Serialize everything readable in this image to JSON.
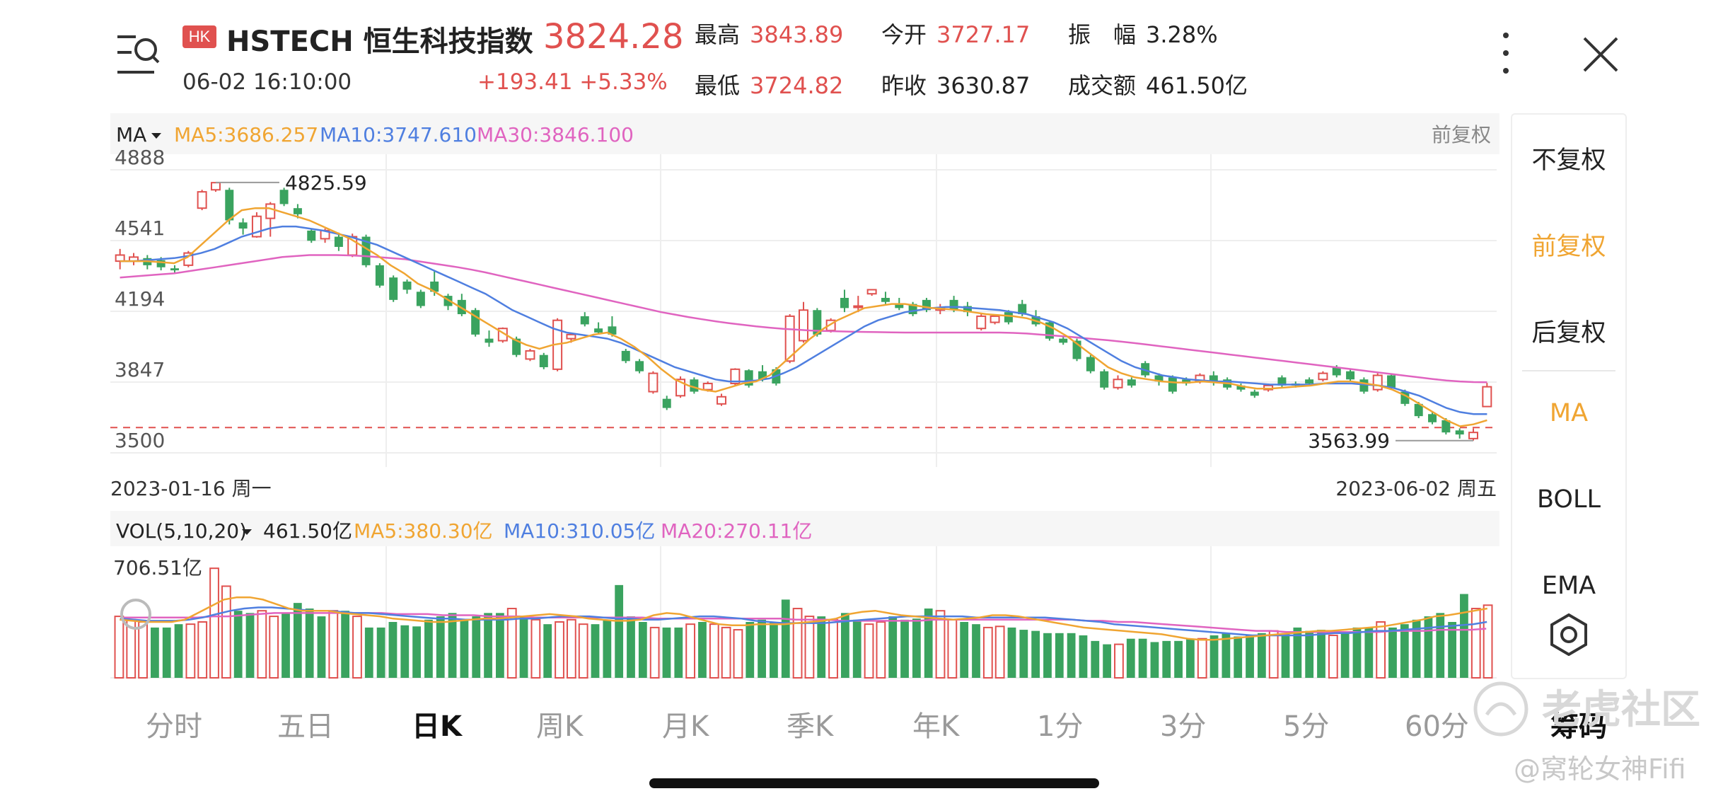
{
  "header": {
    "badge": "HK",
    "title": "HSTECH 恒生科技指数",
    "price": "3824.28",
    "datetime": "06-02 16:10:00",
    "change": "+193.41  +5.33%",
    "stats": {
      "high_label": "最高",
      "high": "3843.89",
      "open_label": "今开",
      "open": "3727.17",
      "amp_label": "振　幅",
      "amp": "3.28%",
      "low_label": "最低",
      "low": "3724.82",
      "prev_label": "昨收",
      "prev": "3630.87",
      "turnover_label": "成交额",
      "turnover": "461.50亿"
    }
  },
  "colors": {
    "up": "#e0514f",
    "down": "#3aa35f",
    "ma5": "#f0a532",
    "ma10": "#4f7fe0",
    "ma30": "#e064c0",
    "text_gray": "#666666",
    "grid": "#eeeeee"
  },
  "indicator": {
    "selector": "MA",
    "ma5": "MA5:3686.257",
    "ma10": "MA10:3747.610",
    "ma30": "MA30:3846.100",
    "adjust": "前复权"
  },
  "volume": {
    "selector": "VOL(5,10,20)",
    "value": "461.50亿",
    "ma5": "MA5:380.30亿",
    "ma10": "MA10:310.05亿",
    "ma20": "MA20:270.11亿",
    "max_label": "706.51亿"
  },
  "chart_data": {
    "type": "candlestick",
    "y_ticks": [
      "4888",
      "4541",
      "4194",
      "3847",
      "3500"
    ],
    "ylim": [
      3500,
      4888
    ],
    "x_start": "2023-01-16 周一",
    "x_end": "2023-06-02 周五",
    "annotations": {
      "high": "4825.59",
      "low": "3563.99"
    },
    "reference_price": 3630.87,
    "candles": [
      [
        4440,
        4470,
        4400,
        4500
      ],
      [
        4440,
        4460,
        4420,
        4480
      ],
      [
        4455,
        4420,
        4400,
        4470
      ],
      [
        4445,
        4410,
        4395,
        4460
      ],
      [
        4405,
        4395,
        4380,
        4420
      ],
      [
        4420,
        4480,
        4410,
        4490
      ],
      [
        4700,
        4780,
        4690,
        4790
      ],
      [
        4790,
        4825,
        4780,
        4826
      ],
      [
        4790,
        4640,
        4620,
        4800
      ],
      [
        4630,
        4600,
        4570,
        4650
      ],
      [
        4560,
        4660,
        4555,
        4680
      ],
      [
        4650,
        4720,
        4560,
        4730
      ],
      [
        4790,
        4720,
        4710,
        4800
      ],
      [
        4700,
        4670,
        4650,
        4720
      ],
      [
        4590,
        4540,
        4530,
        4600
      ],
      [
        4550,
        4590,
        4530,
        4600
      ],
      [
        4560,
        4510,
        4490,
        4580
      ],
      [
        4470,
        4560,
        4460,
        4575
      ],
      [
        4560,
        4420,
        4410,
        4570
      ],
      [
        4420,
        4320,
        4310,
        4430
      ],
      [
        4360,
        4250,
        4240,
        4370
      ],
      [
        4340,
        4300,
        4280,
        4350
      ],
      [
        4290,
        4220,
        4210,
        4300
      ],
      [
        4340,
        4290,
        4270,
        4390
      ],
      [
        4270,
        4220,
        4200,
        4280
      ],
      [
        4250,
        4180,
        4170,
        4280
      ],
      [
        4200,
        4080,
        4070,
        4210
      ],
      [
        4060,
        4040,
        4020,
        4100
      ],
      [
        4050,
        4110,
        4040,
        4115
      ],
      [
        4060,
        3980,
        3970,
        4070
      ],
      [
        3960,
        4000,
        3950,
        4010
      ],
      [
        3980,
        3920,
        3910,
        3990
      ],
      [
        3910,
        4150,
        3900,
        4160
      ],
      [
        4060,
        4080,
        4040,
        4090
      ],
      [
        4170,
        4130,
        4120,
        4190
      ],
      [
        4110,
        4090,
        4080,
        4140
      ],
      [
        4120,
        4080,
        4070,
        4170
      ],
      [
        4000,
        3950,
        3940,
        4010
      ],
      [
        3950,
        3900,
        3890,
        3960
      ],
      [
        3800,
        3890,
        3790,
        3900
      ],
      [
        3765,
        3720,
        3710,
        3780
      ],
      [
        3780,
        3860,
        3770,
        3875
      ],
      [
        3860,
        3800,
        3790,
        3870
      ],
      [
        3810,
        3840,
        3800,
        3850
      ],
      [
        3740,
        3775,
        3730,
        3790
      ],
      [
        3840,
        3910,
        3830,
        3915
      ],
      [
        3905,
        3830,
        3820,
        3910
      ],
      [
        3900,
        3860,
        3850,
        3930
      ],
      [
        3910,
        3840,
        3830,
        3920
      ],
      [
        3950,
        4170,
        3940,
        4180
      ],
      [
        4050,
        4200,
        4040,
        4240
      ],
      [
        4200,
        4080,
        4070,
        4210
      ],
      [
        4100,
        4150,
        4090,
        4160
      ],
      [
        4260,
        4210,
        4190,
        4300
      ],
      [
        4220,
        4220,
        4190,
        4270
      ],
      [
        4280,
        4300,
        4270,
        4300
      ],
      [
        4260,
        4240,
        4230,
        4290
      ],
      [
        4230,
        4210,
        4200,
        4260
      ],
      [
        4230,
        4180,
        4170,
        4240
      ],
      [
        4250,
        4200,
        4190,
        4260
      ],
      [
        4200,
        4210,
        4180,
        4230
      ],
      [
        4250,
        4200,
        4190,
        4270
      ],
      [
        4220,
        4190,
        4170,
        4240
      ],
      [
        4110,
        4170,
        4100,
        4180
      ],
      [
        4140,
        4170,
        4130,
        4180
      ],
      [
        4190,
        4140,
        4130,
        4200
      ],
      [
        4230,
        4180,
        4170,
        4250
      ],
      [
        4170,
        4130,
        4120,
        4200
      ],
      [
        4140,
        4060,
        4050,
        4150
      ],
      [
        4060,
        4040,
        4030,
        4070
      ],
      [
        4050,
        3960,
        3950,
        4060
      ],
      [
        3970,
        3900,
        3890,
        3980
      ],
      [
        3900,
        3820,
        3810,
        3910
      ],
      [
        3820,
        3860,
        3810,
        3880
      ],
      [
        3860,
        3830,
        3820,
        3870
      ],
      [
        3940,
        3880,
        3870,
        3950
      ],
      [
        3880,
        3850,
        3830,
        3890
      ],
      [
        3870,
        3800,
        3790,
        3880
      ],
      [
        3860,
        3840,
        3830,
        3870
      ],
      [
        3850,
        3880,
        3840,
        3890
      ],
      [
        3880,
        3850,
        3830,
        3900
      ],
      [
        3860,
        3820,
        3810,
        3870
      ],
      [
        3830,
        3810,
        3800,
        3840
      ],
      [
        3800,
        3780,
        3770,
        3810
      ],
      [
        3810,
        3830,
        3800,
        3840
      ],
      [
        3870,
        3830,
        3820,
        3880
      ],
      [
        3840,
        3830,
        3820,
        3850
      ],
      [
        3860,
        3840,
        3830,
        3870
      ],
      [
        3860,
        3890,
        3850,
        3900
      ],
      [
        3920,
        3880,
        3870,
        3930
      ],
      [
        3900,
        3860,
        3850,
        3910
      ],
      [
        3860,
        3800,
        3790,
        3870
      ],
      [
        3810,
        3880,
        3800,
        3890
      ],
      [
        3880,
        3820,
        3810,
        3890
      ],
      [
        3800,
        3740,
        3730,
        3810
      ],
      [
        3740,
        3680,
        3670,
        3750
      ],
      [
        3690,
        3650,
        3640,
        3700
      ],
      [
        3660,
        3600,
        3590,
        3670
      ],
      [
        3610,
        3590,
        3570,
        3620
      ],
      [
        3570,
        3600,
        3560,
        3620
      ],
      [
        3727,
        3824,
        3724,
        3843
      ]
    ],
    "ma5": [
      4440,
      4440,
      4440,
      4435,
      4430,
      4460,
      4520,
      4580,
      4640,
      4690,
      4700,
      4700,
      4680,
      4660,
      4640,
      4610,
      4580,
      4550,
      4510,
      4470,
      4420,
      4380,
      4330,
      4300,
      4260,
      4220,
      4180,
      4140,
      4100,
      4060,
      4030,
      4010,
      4030,
      4040,
      4060,
      4080,
      4090,
      4060,
      4020,
      3970,
      3910,
      3860,
      3830,
      3810,
      3800,
      3820,
      3840,
      3850,
      3880,
      3940,
      4000,
      4060,
      4110,
      4150,
      4180,
      4210,
      4220,
      4230,
      4230,
      4220,
      4210,
      4205,
      4200,
      4190,
      4180,
      4175,
      4170,
      4160,
      4140,
      4110,
      4070,
      4020,
      3970,
      3920,
      3890,
      3870,
      3860,
      3850,
      3845,
      3845,
      3850,
      3845,
      3840,
      3825,
      3815,
      3815,
      3820,
      3825,
      3830,
      3840,
      3850,
      3850,
      3840,
      3830,
      3810,
      3780,
      3740,
      3700,
      3660,
      3630,
      3640,
      3660
    ],
    "ma10": [
      4440,
      4440,
      4445,
      4450,
      4455,
      4465,
      4480,
      4500,
      4530,
      4560,
      4580,
      4600,
      4610,
      4610,
      4600,
      4590,
      4575,
      4560,
      4540,
      4520,
      4490,
      4460,
      4430,
      4400,
      4370,
      4340,
      4310,
      4280,
      4240,
      4200,
      4170,
      4140,
      4110,
      4090,
      4080,
      4070,
      4060,
      4040,
      4010,
      3980,
      3950,
      3920,
      3900,
      3880,
      3860,
      3850,
      3850,
      3855,
      3865,
      3890,
      3920,
      3960,
      4000,
      4040,
      4080,
      4120,
      4150,
      4170,
      4190,
      4200,
      4210,
      4215,
      4215,
      4210,
      4205,
      4200,
      4190,
      4180,
      4160,
      4140,
      4110,
      4070,
      4030,
      3990,
      3950,
      3920,
      3900,
      3880,
      3870,
      3860,
      3855,
      3850,
      3850,
      3845,
      3840,
      3835,
      3835,
      3835,
      3835,
      3840,
      3840,
      3840,
      3835,
      3830,
      3820,
      3800,
      3780,
      3750,
      3720,
      3700,
      3690,
      3690
    ],
    "ma30": [
      4360,
      4365,
      4370,
      4375,
      4380,
      4390,
      4400,
      4410,
      4420,
      4430,
      4440,
      4450,
      4460,
      4465,
      4470,
      4470,
      4470,
      4468,
      4465,
      4460,
      4455,
      4450,
      4440,
      4430,
      4420,
      4410,
      4398,
      4385,
      4370,
      4355,
      4340,
      4325,
      4310,
      4295,
      4280,
      4265,
      4250,
      4235,
      4220,
      4205,
      4190,
      4178,
      4166,
      4155,
      4145,
      4136,
      4128,
      4120,
      4114,
      4108,
      4104,
      4100,
      4098,
      4096,
      4094,
      4093,
      4092,
      4091,
      4090,
      4090,
      4090,
      4090,
      4090,
      4090,
      4090,
      4090,
      4088,
      4085,
      4080,
      4075,
      4070,
      4064,
      4058,
      4052,
      4045,
      4038,
      4030,
      4022,
      4014,
      4006,
      3998,
      3990,
      3982,
      3974,
      3966,
      3958,
      3950,
      3942,
      3934,
      3926,
      3918,
      3910,
      3902,
      3894,
      3886,
      3878,
      3870,
      3862,
      3855,
      3850,
      3847,
      3846
    ],
    "volumes": [
      0.55,
      0.52,
      0.5,
      0.45,
      0.45,
      0.48,
      0.48,
      0.5,
      0.98,
      0.82,
      0.6,
      0.58,
      0.6,
      0.55,
      0.58,
      0.67,
      0.62,
      0.55,
      0.6,
      0.6,
      0.55,
      0.45,
      0.45,
      0.5,
      0.47,
      0.46,
      0.52,
      0.55,
      0.58,
      0.52,
      0.55,
      0.58,
      0.58,
      0.62,
      0.55,
      0.52,
      0.48,
      0.5,
      0.52,
      0.48,
      0.48,
      0.52,
      0.83,
      0.55,
      0.5,
      0.45,
      0.45,
      0.45,
      0.48,
      0.5,
      0.48,
      0.45,
      0.43,
      0.5,
      0.52,
      0.5,
      0.7,
      0.62,
      0.55,
      0.55,
      0.52,
      0.58,
      0.52,
      0.48,
      0.5,
      0.55,
      0.52,
      0.53,
      0.62,
      0.6,
      0.52,
      0.5,
      0.48,
      0.45,
      0.46,
      0.45,
      0.43,
      0.42,
      0.4,
      0.4,
      0.4,
      0.38,
      0.33,
      0.3,
      0.3,
      0.35,
      0.35,
      0.32,
      0.33,
      0.33,
      0.35,
      0.35,
      0.38,
      0.4,
      0.37,
      0.38,
      0.4,
      0.42,
      0.4,
      0.45,
      0.42,
      0.43,
      0.38,
      0.4,
      0.45,
      0.45,
      0.5,
      0.45,
      0.48,
      0.52,
      0.55,
      0.58,
      0.5,
      0.75,
      0.62,
      0.65
    ],
    "vol_ma5": [
      0.52,
      0.51,
      0.5,
      0.5,
      0.5,
      0.52,
      0.58,
      0.64,
      0.7,
      0.72,
      0.72,
      0.7,
      0.66,
      0.62,
      0.6,
      0.6,
      0.6,
      0.58,
      0.57,
      0.56,
      0.55,
      0.53,
      0.52,
      0.51,
      0.5,
      0.5,
      0.51,
      0.52,
      0.53,
      0.53,
      0.54,
      0.55,
      0.56,
      0.57,
      0.56,
      0.55,
      0.53,
      0.52,
      0.51,
      0.51,
      0.52,
      0.56,
      0.58,
      0.57,
      0.54,
      0.51,
      0.48,
      0.47,
      0.47,
      0.48,
      0.48,
      0.48,
      0.49,
      0.5,
      0.51,
      0.53,
      0.57,
      0.59,
      0.6,
      0.58,
      0.56,
      0.55,
      0.54,
      0.53,
      0.52,
      0.53,
      0.54,
      0.56,
      0.56,
      0.55,
      0.53,
      0.51,
      0.49,
      0.47,
      0.45,
      0.44,
      0.43,
      0.42,
      0.41,
      0.4,
      0.39,
      0.37,
      0.35,
      0.34,
      0.34,
      0.35,
      0.36,
      0.37,
      0.38,
      0.39,
      0.4,
      0.41,
      0.42,
      0.42,
      0.43,
      0.44,
      0.45,
      0.46,
      0.48,
      0.5,
      0.52,
      0.55,
      0.56,
      0.58,
      0.6,
      0.62
    ],
    "vol_ma10": [
      0.53,
      0.52,
      0.51,
      0.51,
      0.51,
      0.52,
      0.54,
      0.57,
      0.6,
      0.62,
      0.63,
      0.63,
      0.62,
      0.61,
      0.6,
      0.6,
      0.59,
      0.58,
      0.58,
      0.57,
      0.56,
      0.55,
      0.54,
      0.53,
      0.53,
      0.52,
      0.52,
      0.52,
      0.52,
      0.53,
      0.53,
      0.54,
      0.55,
      0.55,
      0.55,
      0.54,
      0.53,
      0.53,
      0.52,
      0.52,
      0.53,
      0.54,
      0.55,
      0.55,
      0.54,
      0.53,
      0.51,
      0.5,
      0.49,
      0.49,
      0.49,
      0.49,
      0.5,
      0.51,
      0.52,
      0.53,
      0.54,
      0.55,
      0.55,
      0.55,
      0.55,
      0.55,
      0.54,
      0.54,
      0.54,
      0.54,
      0.54,
      0.54,
      0.53,
      0.52,
      0.51,
      0.5,
      0.48,
      0.47,
      0.46,
      0.45,
      0.44,
      0.43,
      0.42,
      0.41,
      0.4,
      0.39,
      0.38,
      0.38,
      0.38,
      0.38,
      0.38,
      0.39,
      0.4,
      0.4,
      0.41,
      0.42,
      0.42,
      0.43,
      0.44,
      0.45,
      0.46,
      0.47,
      0.48,
      0.5
    ],
    "vol_ma20": [
      0.54,
      0.54,
      0.54,
      0.54,
      0.54,
      0.54,
      0.55,
      0.55,
      0.56,
      0.57,
      0.58,
      0.58,
      0.58,
      0.58,
      0.58,
      0.58,
      0.58,
      0.58,
      0.57,
      0.57,
      0.57,
      0.56,
      0.56,
      0.56,
      0.55,
      0.55,
      0.55,
      0.54,
      0.54,
      0.54,
      0.54,
      0.54,
      0.54,
      0.54,
      0.54,
      0.53,
      0.53,
      0.53,
      0.53,
      0.53,
      0.53,
      0.53,
      0.53,
      0.53,
      0.52,
      0.52,
      0.52,
      0.51,
      0.51,
      0.51,
      0.51,
      0.51,
      0.51,
      0.52,
      0.52,
      0.52,
      0.52,
      0.52,
      0.52,
      0.52,
      0.52,
      0.52,
      0.52,
      0.51,
      0.51,
      0.5,
      0.5,
      0.49,
      0.48,
      0.47,
      0.46,
      0.45,
      0.44,
      0.43,
      0.42,
      0.42,
      0.41,
      0.41,
      0.41,
      0.41,
      0.41,
      0.41,
      0.41,
      0.42,
      0.42,
      0.42,
      0.43,
      0.43,
      0.43,
      0.44
    ]
  },
  "right_panel": {
    "items": [
      "不复权",
      "前复权",
      "后复权",
      "MA",
      "BOLL",
      "EMA"
    ],
    "settings_icon": "gear-icon"
  },
  "tabs": [
    "分时",
    "五日",
    "日K",
    "周K",
    "月K",
    "季K",
    "年K",
    "1分",
    "3分",
    "5分",
    "60分"
  ],
  "active_tab": 2,
  "chips_label": "筹码",
  "watermark": {
    "text": "老虎社区",
    "author": "@窝轮女神Fifi"
  }
}
